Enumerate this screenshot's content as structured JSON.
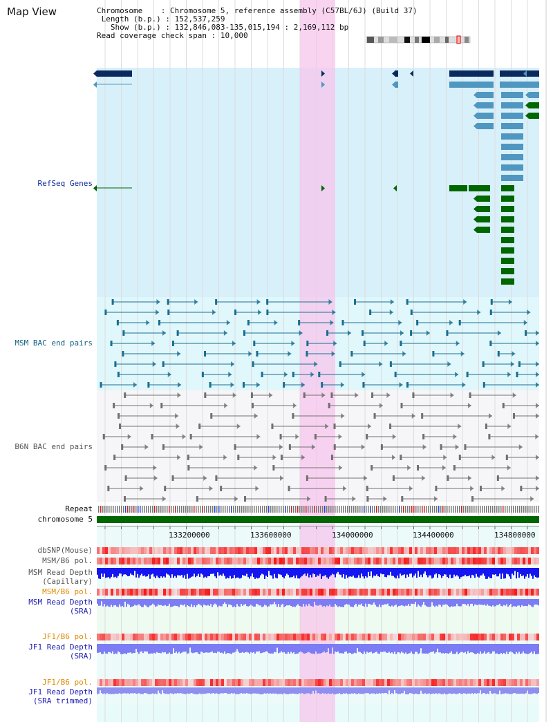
{
  "title": "Map View",
  "info": {
    "chromosome_label": "Chromosome",
    "chromosome_value": "Chromosome 5, reference assembly (C57BL/6J) (Build 37)",
    "length_label": "Length (b.p.)",
    "length_value": "152,537,259",
    "show_label": "Show (b.p.)",
    "show_value": "132,846,083-135,015,194 : 2,169,112 bp",
    "coverage_label": "Read coverage check span",
    "coverage_value": "10,000"
  },
  "tracks": {
    "refseq": "RefSeq Genes",
    "msm_bac": "MSM BAC end pairs",
    "b6n_bac": "B6N BAC end pairs",
    "repeat": "Repeat",
    "chromosome": "chromosome 5",
    "dbsnp": "dbSNP(Mouse)",
    "msm_b6_pol_1": "MSM/B6 pol.",
    "msm_read_depth_cap_1": "MSM Read Depth",
    "msm_read_depth_cap_2": "(Capillary)",
    "msm_b6_pol_2": "MSM/B6 pol.",
    "msm_read_depth_sra_1": "MSM Read Depth",
    "msm_read_depth_sra_2": "(SRA)",
    "jf1_b6_pol_1": "JF1/B6 pol.",
    "jf1_read_depth_sra_1": "JF1 Read Depth",
    "jf1_read_depth_sra_2": "(SRA)",
    "jf1_b6_pol_2": "JF1/B6 pol.",
    "jf1_read_depth_trim_1": "JF1 Read Depth",
    "jf1_read_depth_trim_2": "(SRA trimmed)"
  },
  "axis": {
    "ticks": [
      "133200000",
      "133600000",
      "134000000",
      "134400000",
      "134800000"
    ]
  },
  "colors": {
    "highlight": "#f7d3ee",
    "refseq_bg": "#d8f0fa",
    "msm_bg": "#e0f7fb",
    "b6n_bg": "#f5f5f8",
    "navy_gene": "#0a2a5e",
    "blue_gene": "#4f97c0",
    "green_gene": "#006600",
    "chromosome_bar": "#006600",
    "depth_capillary": "#1515f0",
    "depth_sra": "#7c7cf4"
  }
}
